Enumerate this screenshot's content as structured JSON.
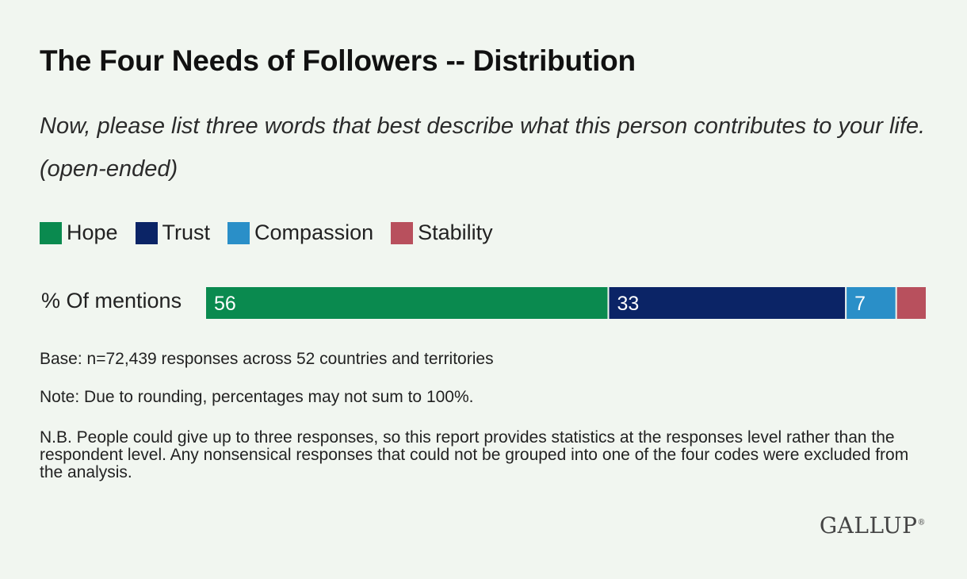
{
  "chart_data": {
    "type": "bar",
    "orientation": "horizontal-stacked",
    "title": "The Four Needs of Followers -- Distribution",
    "subtitle": "Now, please list three words that best describe what this person contributes to your life. (open-ended)",
    "categories": [
      "% Of mentions"
    ],
    "series": [
      {
        "name": "Hope",
        "values": [
          56
        ],
        "label": "56",
        "color": "#0a8a4f"
      },
      {
        "name": "Trust",
        "values": [
          33
        ],
        "label": "33",
        "color": "#0b2466"
      },
      {
        "name": "Compassion",
        "values": [
          7
        ],
        "label": "7",
        "color": "#2a8fc8"
      },
      {
        "name": "Stability",
        "values": [
          4
        ],
        "label": "",
        "color": "#b8505d"
      }
    ],
    "legend_position": "top-left",
    "grid": false
  },
  "notes": {
    "base": "Base: n=72,439 responses across 52 countries and territories",
    "rounding": "Note: Due to rounding, percentages may not sum to 100%.",
    "nb": "N.B. People could give up to three responses, so this report provides statistics at the responses level rather than the respondent level. Any nonsensical responses that could not be grouped into one of the four codes were excluded from the analysis."
  },
  "brand": {
    "logo_text": "GALLUP",
    "logo_mark": "®"
  }
}
